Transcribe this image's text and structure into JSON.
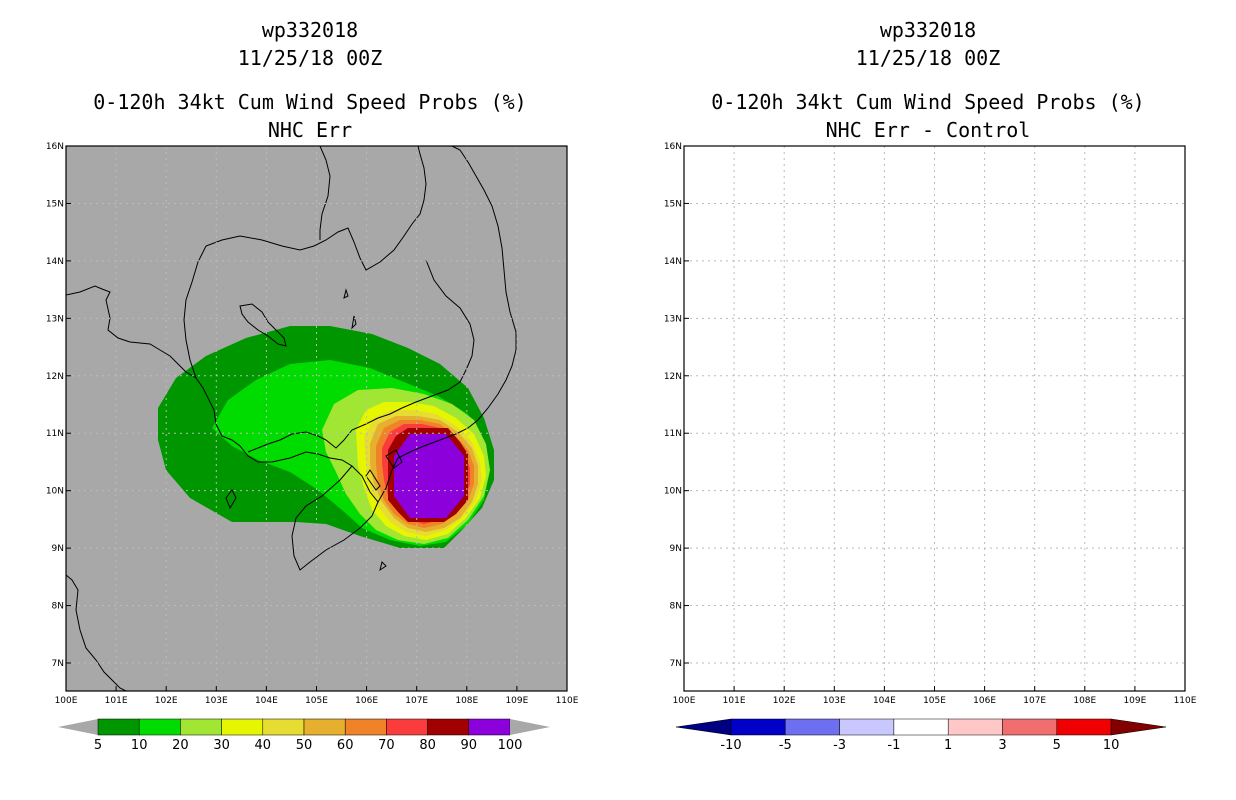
{
  "left_panel": {
    "title": {
      "storm": "wp332018",
      "datetime": "11/25/18 00Z",
      "product": "0-120h 34kt Cum Wind Speed Probs (%)",
      "subtitle": "NHC Err"
    },
    "background_color": "#a8a8a8",
    "colorbar": {
      "labels": [
        "5",
        "10",
        "20",
        "30",
        "40",
        "50",
        "60",
        "70",
        "80",
        "90",
        "100"
      ],
      "colors": [
        "#009600",
        "#00dc00",
        "#a0e632",
        "#e6f500",
        "#e6dc32",
        "#e6af2d",
        "#f08228",
        "#fa3c3c",
        "#a00000",
        "#8c00dc"
      ],
      "end_color": "#a8a8a8"
    }
  },
  "right_panel": {
    "title": {
      "storm": "wp332018",
      "datetime": "11/25/18 00Z",
      "product": "0-120h 34kt Cum Wind Speed Probs (%)",
      "subtitle": "NHC Err - Control"
    },
    "background_color": "#ffffff",
    "colorbar": {
      "labels": [
        "-10",
        "-5",
        "-3",
        "-1",
        "1",
        "3",
        "5",
        "10"
      ],
      "colors": [
        "#0000c8",
        "#6e6ef0",
        "#c8c8ff",
        "#ffffff",
        "#ffc8c8",
        "#f06e6e",
        "#f00000"
      ],
      "low_end_color": "#000082",
      "high_end_color": "#820000"
    }
  },
  "axes": {
    "lon_ticks": [
      "100E",
      "101E",
      "102E",
      "103E",
      "104E",
      "105E",
      "106E",
      "107E",
      "108E",
      "109E",
      "110E"
    ],
    "lat_ticks": [
      "7N",
      "8N",
      "9N",
      "10N",
      "11N",
      "12N",
      "13N",
      "14N",
      "15N",
      "16N"
    ]
  }
}
